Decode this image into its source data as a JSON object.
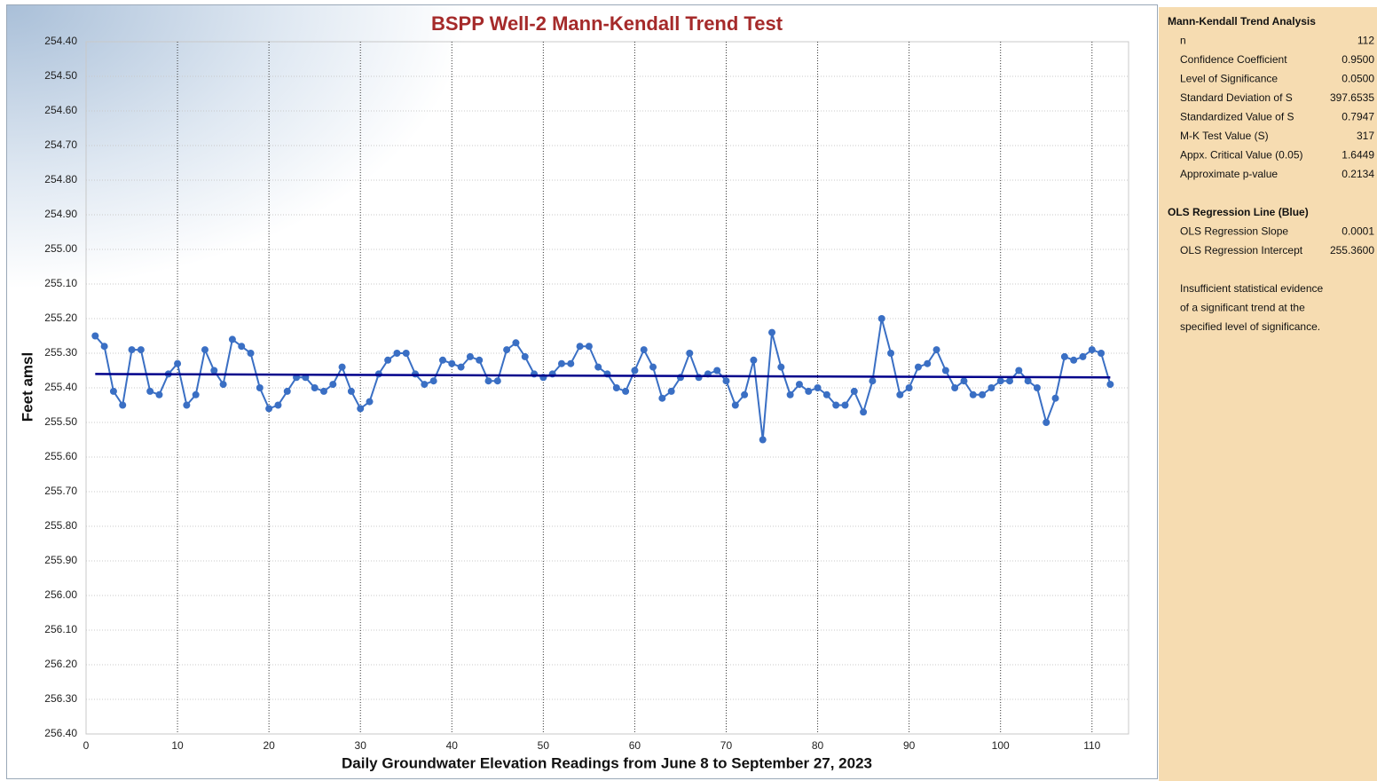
{
  "chart_data": {
    "type": "line",
    "title": "BSPP Well-2 Mann-Kendall Trend Test",
    "xlabel": "Daily Groundwater Elevation Readings from June 8 to September 27, 2023",
    "ylabel": "Feet amsl",
    "x": [
      1,
      2,
      3,
      4,
      5,
      6,
      7,
      8,
      9,
      10,
      11,
      12,
      13,
      14,
      15,
      16,
      17,
      18,
      19,
      20,
      21,
      22,
      23,
      24,
      25,
      26,
      27,
      28,
      29,
      30,
      31,
      32,
      33,
      34,
      35,
      36,
      37,
      38,
      39,
      40,
      41,
      42,
      43,
      44,
      45,
      46,
      47,
      48,
      49,
      50,
      51,
      52,
      53,
      54,
      55,
      56,
      57,
      58,
      59,
      60,
      61,
      62,
      63,
      64,
      65,
      66,
      67,
      68,
      69,
      70,
      71,
      72,
      73,
      74,
      75,
      76,
      77,
      78,
      79,
      80,
      81,
      82,
      83,
      84,
      85,
      86,
      87,
      88,
      89,
      90,
      91,
      92,
      93,
      94,
      95,
      96,
      97,
      98,
      99,
      100,
      101,
      102,
      103,
      104,
      105,
      106,
      107,
      108,
      109,
      110,
      111,
      112
    ],
    "series": [
      {
        "color": "#3a6fc4",
        "values": [
          255.25,
          255.28,
          255.41,
          255.45,
          255.29,
          255.29,
          255.41,
          255.42,
          255.36,
          255.33,
          255.45,
          255.42,
          255.29,
          255.35,
          255.39,
          255.26,
          255.28,
          255.3,
          255.4,
          255.46,
          255.45,
          255.41,
          255.37,
          255.37,
          255.4,
          255.41,
          255.39,
          255.34,
          255.41,
          255.46,
          255.44,
          255.36,
          255.32,
          255.3,
          255.3,
          255.36,
          255.39,
          255.38,
          255.32,
          255.33,
          255.34,
          255.31,
          255.32,
          255.38,
          255.38,
          255.29,
          255.27,
          255.31,
          255.36,
          255.37,
          255.36,
          255.33,
          255.33,
          255.28,
          255.28,
          255.34,
          255.36,
          255.4,
          255.41,
          255.35,
          255.29,
          255.34,
          255.43,
          255.41,
          255.37,
          255.3,
          255.37,
          255.36,
          255.35,
          255.38,
          255.45,
          255.42,
          255.32,
          255.55,
          255.24,
          255.34,
          255.42,
          255.39,
          255.41,
          255.4,
          255.42,
          255.45,
          255.45,
          255.41,
          255.47,
          255.38,
          255.2,
          255.3,
          255.42,
          255.4,
          255.34,
          255.33,
          255.29,
          255.35,
          255.4,
          255.38,
          255.42,
          255.42,
          255.4,
          255.38,
          255.38,
          255.35,
          255.38,
          255.4,
          255.5,
          255.43,
          255.31,
          255.32,
          255.31,
          255.29,
          255.3,
          255.39
        ]
      }
    ],
    "regression": {
      "color": "#00008b",
      "x": [
        1,
        112
      ],
      "values": [
        255.36,
        255.37
      ]
    },
    "xlim": [
      0,
      114
    ],
    "xticks": [
      0,
      10,
      20,
      30,
      40,
      50,
      60,
      70,
      80,
      90,
      100,
      110
    ],
    "ylim": [
      254.4,
      256.4
    ],
    "yinverted": true,
    "yticks": [
      {
        "value": 254.4,
        "label": "254.40"
      },
      {
        "value": 254.5,
        "label": "254.50"
      },
      {
        "value": 254.6,
        "label": "254.60"
      },
      {
        "value": 254.7,
        "label": "254.70"
      },
      {
        "value": 254.8,
        "label": "254.80"
      },
      {
        "value": 254.9,
        "label": "254.90"
      },
      {
        "value": 255.0,
        "label": "255.00"
      },
      {
        "value": 255.1,
        "label": "255.10"
      },
      {
        "value": 255.2,
        "label": "255.20"
      },
      {
        "value": 255.3,
        "label": "255.30"
      },
      {
        "value": 255.4,
        "label": "255.40"
      },
      {
        "value": 255.5,
        "label": "255.50"
      },
      {
        "value": 255.6,
        "label": "255.60"
      },
      {
        "value": 255.7,
        "label": "255.70"
      },
      {
        "value": 255.8,
        "label": "255.80"
      },
      {
        "value": 255.9,
        "label": "255.90"
      },
      {
        "value": 256.0,
        "label": "256.00"
      },
      {
        "value": 256.1,
        "label": "256.10"
      },
      {
        "value": 256.2,
        "label": "256.20"
      },
      {
        "value": 256.3,
        "label": "256.30"
      },
      {
        "value": 256.4,
        "label": "256.40"
      }
    ],
    "grid": true
  },
  "panel": {
    "sections": [
      {
        "title": "Mann-Kendall Trend Analysis",
        "rows": [
          {
            "label": "n",
            "value": "112"
          },
          {
            "label": "Confidence Coefficient",
            "value": "0.9500"
          },
          {
            "label": "Level of Significance",
            "value": "0.0500"
          },
          {
            "label": "Standard Deviation of S",
            "value": "397.6535"
          },
          {
            "label": "Standardized Value of S",
            "value": "0.7947"
          },
          {
            "label": "M-K Test Value (S)",
            "value": "317"
          },
          {
            "label": "Appx. Critical Value (0.05)",
            "value": "1.6449"
          },
          {
            "label": "Approximate p-value",
            "value": "0.2134"
          }
        ]
      },
      {
        "title": "OLS Regression Line (Blue)",
        "rows": [
          {
            "label": "OLS Regression Slope",
            "value": "0.0001"
          },
          {
            "label": "OLS Regression Intercept",
            "value": "255.3600"
          }
        ]
      }
    ],
    "note": [
      "Insufficient statistical evidence",
      "of a significant trend at the",
      "specified level of significance."
    ]
  }
}
